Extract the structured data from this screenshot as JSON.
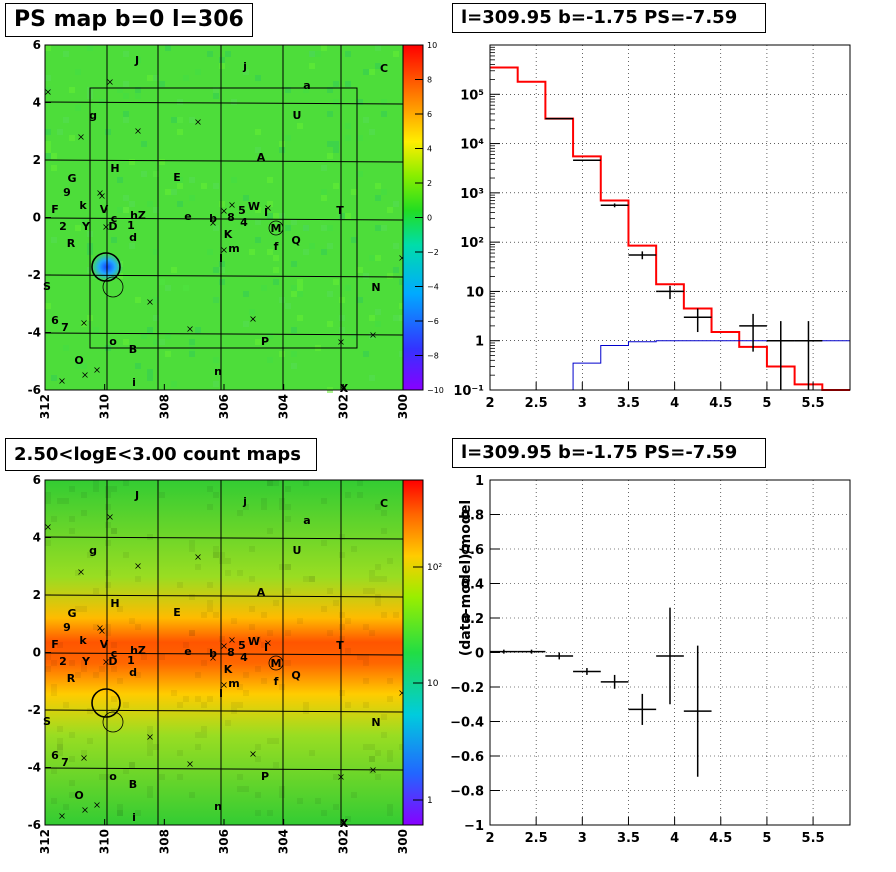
{
  "panels": {
    "ps_map": {
      "title": "PS map b=0 l=306",
      "x_ticks": [
        "312",
        "310",
        "308",
        "306",
        "304",
        "302",
        "300"
      ],
      "y_ticks": [
        "6",
        "4",
        "2",
        "0",
        "-2",
        "-4",
        "-6"
      ],
      "colorbar_ticks": [
        "10",
        "8",
        "6",
        "4",
        "2",
        "0",
        "−2",
        "−4",
        "−6",
        "−8",
        "−10"
      ]
    },
    "spectrum": {
      "title": "l=309.95 b=-1.75 PS=-7.59",
      "x_ticks": [
        "2",
        "2.5",
        "3",
        "3.5",
        "4",
        "4.5",
        "5",
        "5.5"
      ],
      "y_ticks": [
        "10⁵",
        "10⁴",
        "10³",
        "10²",
        "10",
        "1",
        "10⁻¹"
      ]
    },
    "count_map": {
      "title": "2.50<logE<3.00 count maps",
      "x_ticks": [
        "312",
        "310",
        "308",
        "306",
        "304",
        "302",
        "300"
      ],
      "y_ticks": [
        "6",
        "4",
        "2",
        "0",
        "-2",
        "-4",
        "-6"
      ],
      "colorbar_ticks": [
        "10²",
        "10",
        "1"
      ]
    },
    "residual": {
      "title": "l=309.95 b=-1.75 PS=-7.59",
      "ylabel": "(data-model)/model",
      "x_ticks": [
        "2",
        "2.5",
        "3",
        "3.5",
        "4",
        "4.5",
        "5",
        "5.5"
      ],
      "y_ticks": [
        "1",
        "0.8",
        "0.6",
        "0.4",
        "0.2",
        "0",
        "−0.2",
        "−0.4",
        "−0.6",
        "−0.8",
        "−1"
      ]
    }
  },
  "source_labels": [
    "J",
    "j",
    "a",
    "C",
    "g",
    "U",
    "H",
    "A",
    "E",
    "G",
    "9",
    "F",
    "k",
    "V",
    "c",
    "hZ",
    "1",
    "d",
    "e",
    "b",
    "8",
    "5",
    "W",
    "I",
    "T",
    "2",
    "Y",
    "D",
    "K",
    "4",
    "m",
    "M",
    "Q",
    "f",
    "R",
    "l",
    "S",
    "B",
    "N",
    "6",
    "7",
    "o",
    "P",
    "O",
    "n",
    "i",
    "X"
  ],
  "chart_data": [
    {
      "type": "heatmap",
      "title": "PS map b=0 l=306",
      "xlim": [
        312,
        300
      ],
      "ylim": [
        -6,
        6
      ],
      "colorbar_range": [
        -10,
        10
      ],
      "highlighted_source": {
        "l": 309.95,
        "b": -1.75
      }
    },
    {
      "type": "line",
      "title": "l=309.95 b=-1.75 PS=-7.59",
      "xlim": [
        2,
        5.9
      ],
      "ylim": [
        0.1,
        1000000
      ],
      "yscale": "log",
      "grid": true,
      "series": [
        {
          "color": "#ff0000",
          "style": "step",
          "edges": [
            2,
            2.3,
            2.6,
            2.9,
            3.2,
            3.5,
            3.8,
            4.1,
            4.4,
            4.7,
            5.0,
            5.3,
            5.6,
            5.9
          ],
          "values": [
            350000,
            180000,
            32000,
            5500,
            700,
            85,
            14,
            4.5,
            1.5,
            0.75,
            0.3,
            0.13,
            0.1
          ]
        },
        {
          "color": "#0000cc",
          "style": "step",
          "edges": [
            2.9,
            3.2,
            3.5,
            3.8,
            4.1,
            4.4,
            4.7,
            5.0,
            5.3,
            5.6,
            5.9
          ],
          "values": [
            0.35,
            0.8,
            0.95,
            1.0,
            1.0,
            1.0,
            1.0,
            1.0,
            1.0,
            1.0
          ]
        },
        {
          "color": "#000000",
          "style": "points",
          "x": [
            2.75,
            3.05,
            3.35,
            3.65,
            3.95,
            4.25,
            4.85,
            5.15,
            5.45
          ],
          "y": [
            32000,
            4600,
            560,
            55,
            10,
            3,
            2,
            1,
            1
          ],
          "y_low": [
            31500,
            4450,
            510,
            45,
            7,
            1.5,
            0.6,
            0.1,
            0.1
          ],
          "y_high": [
            32500,
            4750,
            610,
            65,
            13,
            4.5,
            3.5,
            2.5,
            2.5
          ],
          "xerr": 0.15
        }
      ]
    },
    {
      "type": "heatmap",
      "title": "2.50<logE<3.00 count maps",
      "xlim": [
        312,
        300
      ],
      "ylim": [
        -6,
        6
      ],
      "colorbar_scale": "log",
      "highlighted_source": {
        "l": 309.95,
        "b": -1.75
      }
    },
    {
      "type": "scatter",
      "title": "l=309.95 b=-1.75 PS=-7.59",
      "ylabel": "(data-model)/model",
      "xlim": [
        2,
        5.9
      ],
      "ylim": [
        -1,
        1
      ],
      "grid": true,
      "points": [
        {
          "x": 2.15,
          "y": 0.005,
          "err_low": 0.0,
          "err_high": 0.0,
          "xerr": 0.15
        },
        {
          "x": 2.45,
          "y": 0.005,
          "err_low": 0.0,
          "err_high": 0.0,
          "xerr": 0.15
        },
        {
          "x": 2.75,
          "y": -0.02,
          "err_low": 0.02,
          "err_high": 0.02,
          "xerr": 0.15
        },
        {
          "x": 3.05,
          "y": -0.11,
          "err_low": 0.02,
          "err_high": 0.02,
          "xerr": 0.15
        },
        {
          "x": 3.35,
          "y": -0.17,
          "err_low": 0.04,
          "err_high": 0.04,
          "xerr": 0.15
        },
        {
          "x": 3.65,
          "y": -0.33,
          "err_low": 0.09,
          "err_high": 0.09,
          "xerr": 0.15
        },
        {
          "x": 3.95,
          "y": -0.02,
          "err_low": 0.28,
          "err_high": 0.28,
          "xerr": 0.15
        },
        {
          "x": 4.25,
          "y": -0.34,
          "err_low": 0.38,
          "err_high": 0.38,
          "xerr": 0.15
        }
      ]
    }
  ]
}
